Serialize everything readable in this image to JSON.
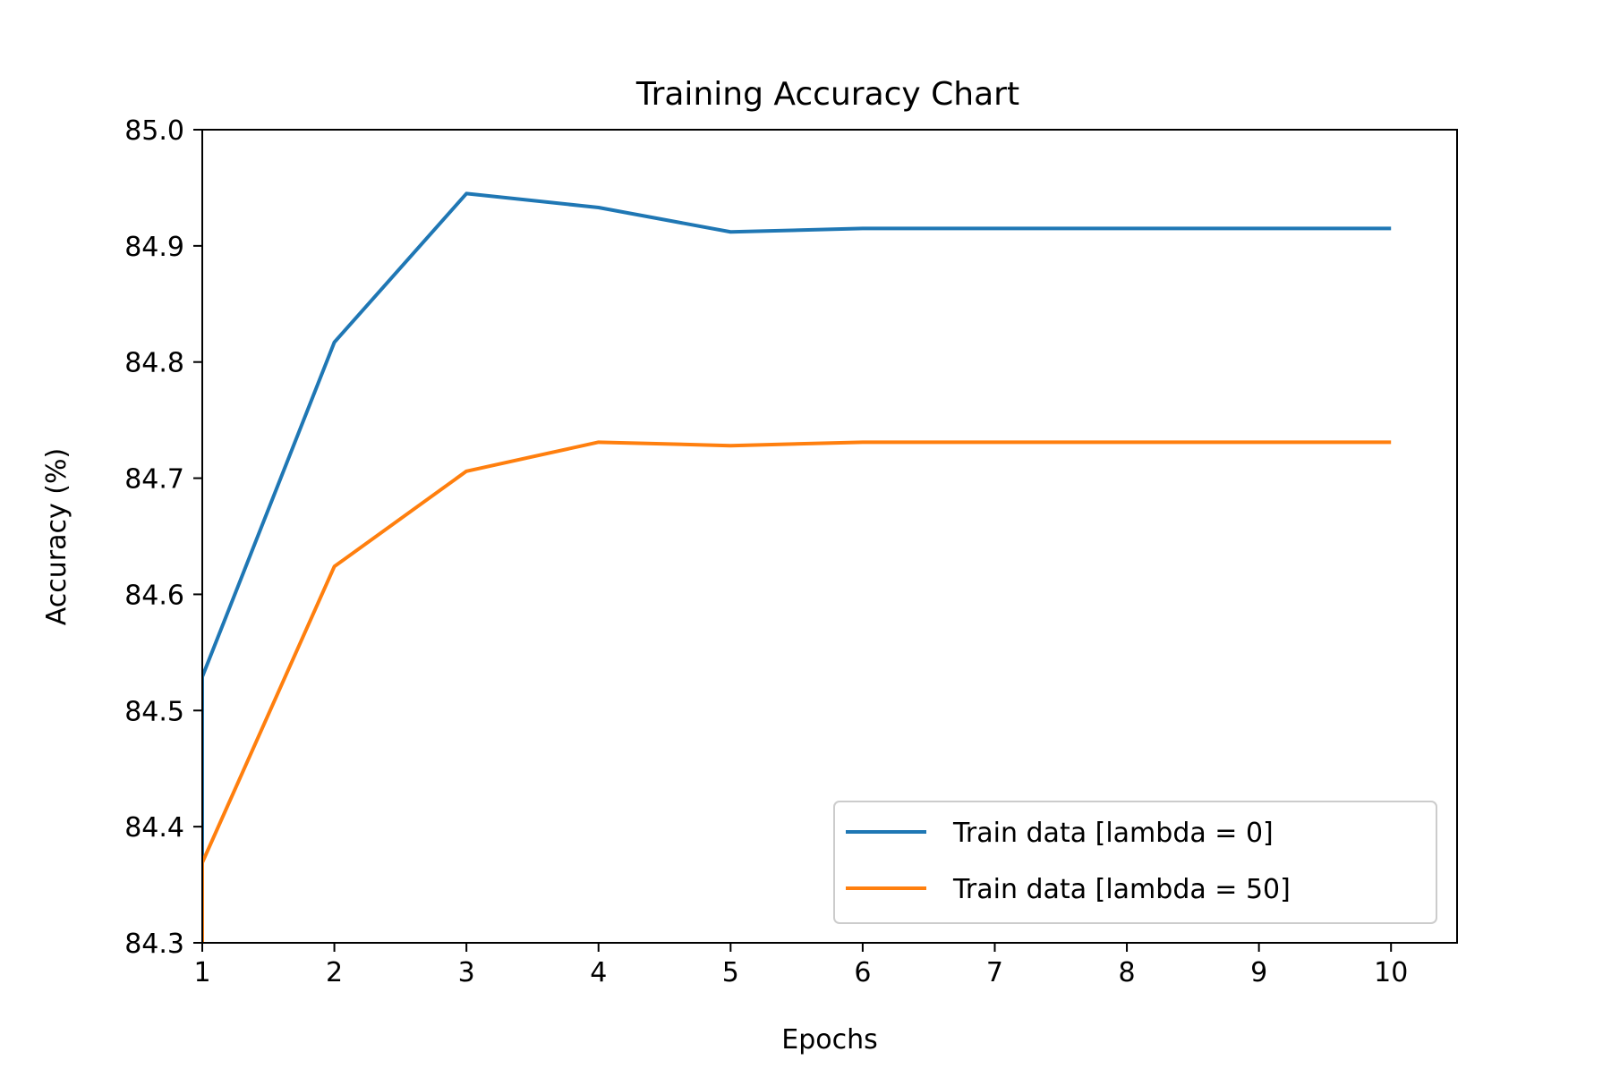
{
  "chart_data": {
    "type": "line",
    "title": "Training Accuracy Chart",
    "xlabel": "Epochs",
    "ylabel": "Accuracy (%)",
    "x": [
      1,
      2,
      3,
      4,
      5,
      6,
      7,
      8,
      9,
      10
    ],
    "xlim": [
      1,
      10.5
    ],
    "ylim": [
      84.3,
      85.0
    ],
    "xticks": [
      1,
      2,
      3,
      4,
      5,
      6,
      7,
      8,
      9,
      10
    ],
    "yticks": [
      "84.3",
      "84.4",
      "84.5",
      "84.6",
      "84.7",
      "84.8",
      "84.9",
      "85.0"
    ],
    "grid": false,
    "legend_position": "lower-right",
    "series": [
      {
        "name": "Train data [lambda = 0]",
        "color": "#1f77b4",
        "values": [
          84.529,
          84.817,
          84.945,
          84.933,
          84.912,
          84.915,
          84.915,
          84.915,
          84.915,
          84.915
        ]
      },
      {
        "name": "Train data [lambda = 50]",
        "color": "#ff7f0e",
        "values": [
          84.369,
          84.624,
          84.706,
          84.731,
          84.728,
          84.731,
          84.731,
          84.731,
          84.731,
          84.731
        ]
      }
    ]
  }
}
